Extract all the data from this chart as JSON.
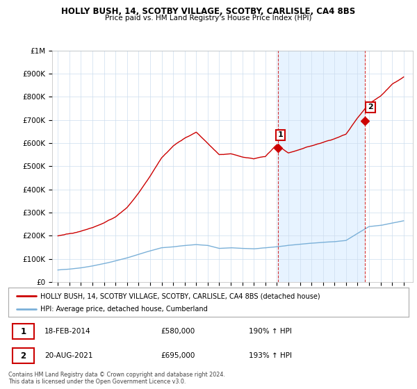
{
  "title": "HOLLY BUSH, 14, SCOTBY VILLAGE, SCOTBY, CARLISLE, CA4 8BS",
  "subtitle": "Price paid vs. HM Land Registry's House Price Index (HPI)",
  "ylim": [
    0,
    1000000
  ],
  "yticks": [
    0,
    100000,
    200000,
    300000,
    400000,
    500000,
    600000,
    700000,
    800000,
    900000,
    1000000
  ],
  "ytick_labels": [
    "£0",
    "£100K",
    "£200K",
    "£300K",
    "£400K",
    "£500K",
    "£600K",
    "£700K",
    "£800K",
    "£900K",
    "£1M"
  ],
  "hpi_color": "#7ab0d8",
  "property_color": "#cc0000",
  "vline_color": "#cc0000",
  "shade_color": "#ddeeff",
  "sale1_year": 2014.12,
  "sale1_price": 580000,
  "sale1_label": "1",
  "sale2_year": 2021.63,
  "sale2_price": 695000,
  "sale2_label": "2",
  "legend_property": "HOLLY BUSH, 14, SCOTBY VILLAGE, SCOTBY, CARLISLE, CA4 8BS (detached house)",
  "legend_hpi": "HPI: Average price, detached house, Cumberland",
  "table_row1": [
    "1",
    "18-FEB-2014",
    "£580,000",
    "190% ↑ HPI"
  ],
  "table_row2": [
    "2",
    "20-AUG-2021",
    "£695,000",
    "193% ↑ HPI"
  ],
  "footer": "Contains HM Land Registry data © Crown copyright and database right 2024.\nThis data is licensed under the Open Government Licence v3.0.",
  "background_color": "#ffffff",
  "grid_color": "#ccddee",
  "hpi_key_years": [
    1995,
    1996,
    1997,
    1998,
    1999,
    2000,
    2001,
    2002,
    2003,
    2004,
    2005,
    2006,
    2007,
    2008,
    2009,
    2010,
    2011,
    2012,
    2013,
    2014,
    2015,
    2016,
    2017,
    2018,
    2019,
    2020,
    2021,
    2022,
    2023,
    2024,
    2025
  ],
  "hpi_key_vals": [
    52000,
    56000,
    62000,
    70000,
    80000,
    92000,
    105000,
    120000,
    135000,
    148000,
    152000,
    158000,
    162000,
    158000,
    145000,
    148000,
    145000,
    143000,
    147000,
    152000,
    158000,
    163000,
    168000,
    172000,
    175000,
    180000,
    210000,
    240000,
    245000,
    255000,
    265000
  ],
  "prop_key_years": [
    1995,
    1996,
    1997,
    1998,
    1999,
    2000,
    2001,
    2002,
    2003,
    2004,
    2005,
    2006,
    2007,
    2008,
    2009,
    2010,
    2011,
    2012,
    2013,
    2014,
    2015,
    2016,
    2017,
    2018,
    2019,
    2020,
    2021,
    2022,
    2023,
    2024,
    2025
  ],
  "prop_key_vals": [
    200000,
    210000,
    220000,
    235000,
    255000,
    280000,
    320000,
    380000,
    450000,
    530000,
    580000,
    615000,
    640000,
    590000,
    540000,
    545000,
    530000,
    520000,
    530000,
    580000,
    545000,
    560000,
    575000,
    590000,
    605000,
    625000,
    695000,
    760000,
    790000,
    840000,
    870000
  ]
}
